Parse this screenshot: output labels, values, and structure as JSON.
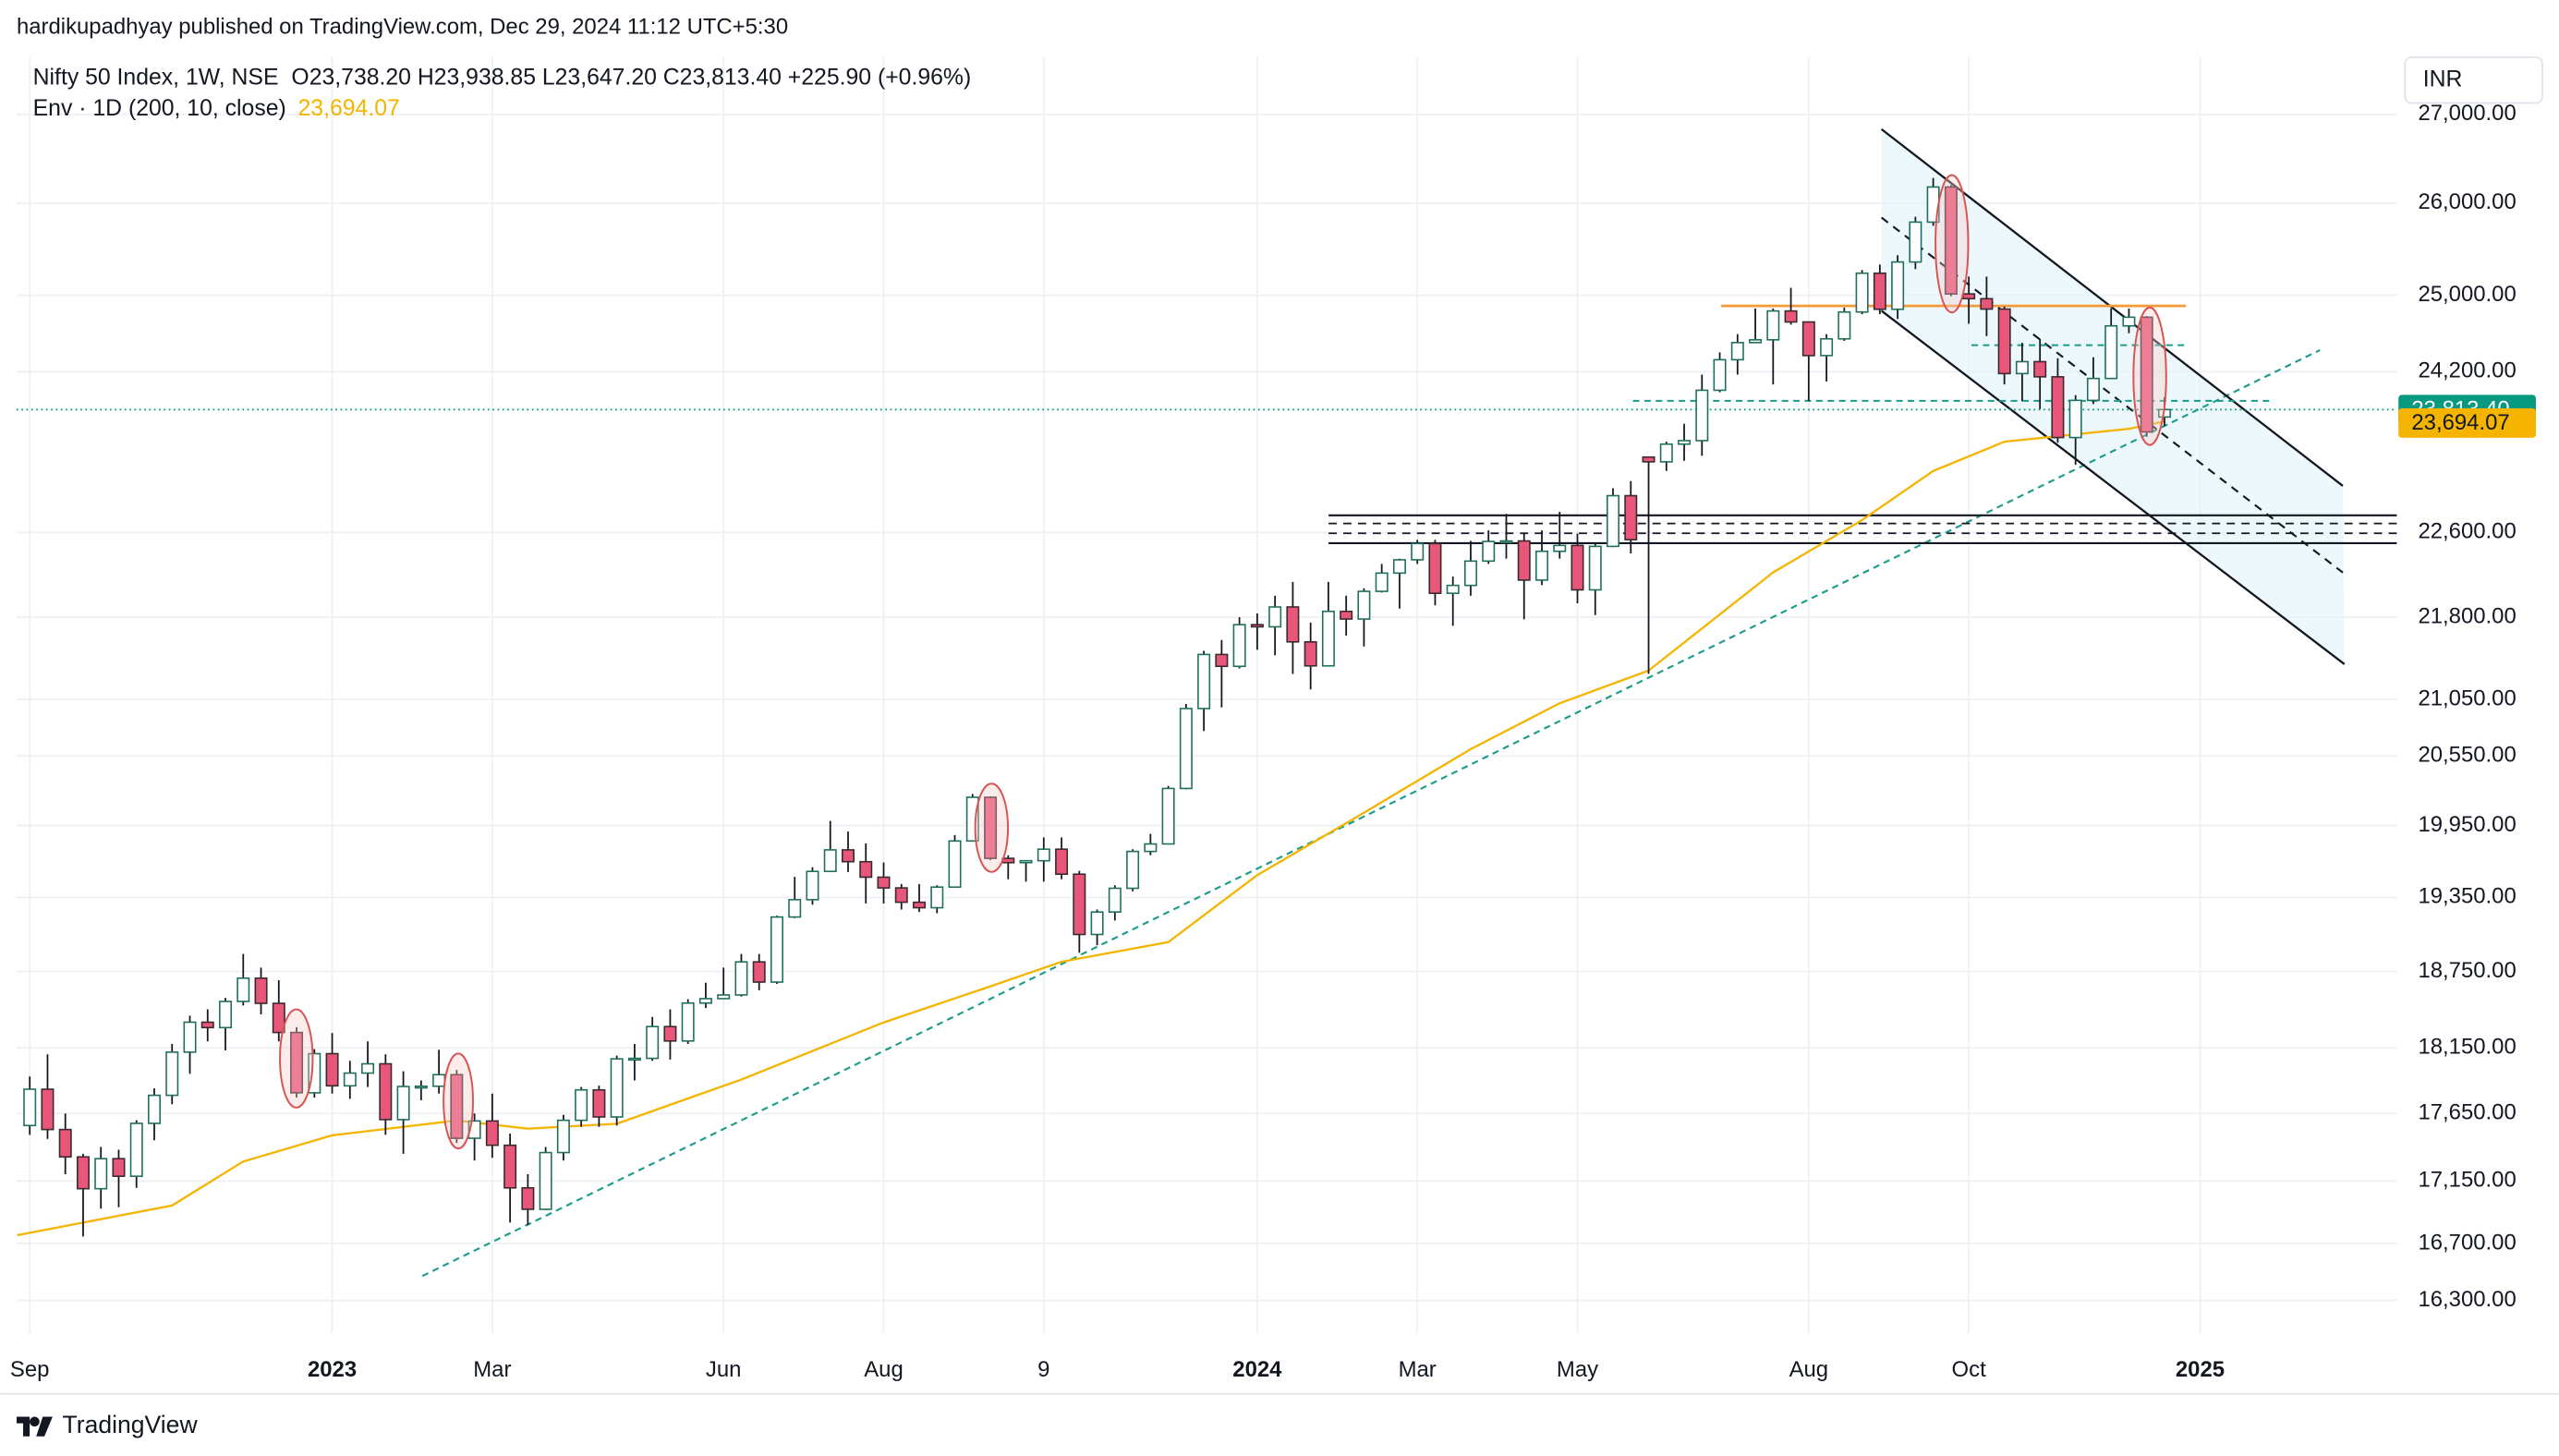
{
  "header": {
    "published": "hardikupadhyay published on TradingView.com, Dec 29, 2024 11:12 UTC+5:30",
    "brand": "TradingView"
  },
  "chart_data": {
    "type": "candlestick",
    "legend": {
      "symbol": "Nifty 50 Index, 1W, NSE",
      "ohlc": "O23,738.20 H23,938.85 L23,647.20 C23,813.40 +225.90 (+0.96%)",
      "indicator": "Env · 1D (200, 10, close)",
      "indicator_value": "23,694.07"
    },
    "currency": "INR",
    "last_price_label": "23,813.40",
    "up_color": "#ffffff",
    "down_color": "#e8577a",
    "log_scale": true,
    "grid": true,
    "candles": {
      "open": [
        17560,
        17833,
        17530,
        17327,
        17094,
        17314,
        17185,
        17576,
        17787,
        18117,
        18349,
        18307,
        18512,
        18696,
        18497,
        18269,
        17806,
        18105,
        17859,
        17956,
        18027,
        17604,
        17854,
        17856,
        17944,
        17465,
        17594,
        17413,
        17100,
        16945,
        17359,
        17599,
        17828,
        17624,
        18065,
        18069,
        18315,
        18203,
        18499,
        18534,
        18563,
        18826,
        18665,
        19189,
        19331,
        19565,
        19745,
        19646,
        19517,
        19428,
        19310,
        19265,
        19435,
        19820,
        20192,
        19674,
        19638,
        19654,
        19751,
        19542,
        19047,
        19230,
        19425,
        19732,
        19795,
        20268,
        20969,
        21457,
        21349,
        21731,
        21711,
        21895,
        21572,
        21353,
        21854,
        21783,
        22041,
        22213,
        22339,
        22494,
        22023,
        22097,
        22327,
        22514,
        22519,
        22147,
        22420,
        22476,
        22055,
        22467,
        22957,
        23337,
        23290,
        23466,
        23501,
        24010,
        24324,
        24502,
        24531,
        24834,
        24718,
        24367,
        24541,
        24823,
        25236,
        24852,
        25357,
        25791,
        26179,
        25015,
        24964,
        24854,
        24181,
        24304,
        24148,
        23532,
        23907,
        24131,
        24677,
        24768,
        23738.2
      ],
      "high": [
        17930,
        18100,
        17650,
        17350,
        17400,
        17380,
        17600,
        17840,
        18180,
        18400,
        18450,
        18540,
        18890,
        18780,
        18680,
        18310,
        18140,
        18265,
        18050,
        18200,
        18100,
        17970,
        17900,
        18135,
        17980,
        17650,
        17800,
        17500,
        17200,
        17400,
        17640,
        17850,
        17860,
        18090,
        18180,
        18390,
        18450,
        18530,
        18660,
        18780,
        18890,
        18890,
        19200,
        19520,
        19600,
        19990,
        19900,
        19800,
        19640,
        19460,
        19460,
        19450,
        19870,
        20220,
        20200,
        19700,
        19660,
        19850,
        19850,
        19570,
        19250,
        19450,
        19750,
        19880,
        20290,
        21010,
        21490,
        21590,
        21800,
        21835,
        22000,
        22130,
        21750,
        22130,
        22000,
        22070,
        22300,
        22350,
        22530,
        22530,
        22180,
        22520,
        22620,
        22780,
        22600,
        22620,
        22800,
        22590,
        22500,
        23030,
        23100,
        23339,
        23490,
        23670,
        24170,
        24400,
        24590,
        24860,
        24860,
        25080,
        24720,
        24590,
        24870,
        25270,
        25330,
        25430,
        25850,
        26280,
        26200,
        25200,
        25200,
        24880,
        24500,
        24540,
        24340,
        23960,
        24350,
        24860,
        24860,
        24780,
        23938.85
      ],
      "low": [
        17490,
        17460,
        17200,
        16750,
        16950,
        16960,
        17100,
        17450,
        17720,
        17950,
        18200,
        18130,
        18480,
        18410,
        18200,
        17770,
        17770,
        17800,
        17760,
        17850,
        17490,
        17350,
        17750,
        17800,
        17430,
        17300,
        17320,
        16850,
        16830,
        16940,
        17300,
        17550,
        17550,
        17560,
        17900,
        18050,
        18060,
        18180,
        18460,
        18530,
        18550,
        18600,
        18650,
        19180,
        19290,
        19560,
        19560,
        19300,
        19300,
        19250,
        19230,
        19220,
        19430,
        19820,
        19660,
        19500,
        19480,
        19480,
        19500,
        18900,
        18960,
        19160,
        19400,
        19700,
        19790,
        20260,
        20770,
        20980,
        21330,
        21500,
        21450,
        21280,
        21140,
        21350,
        21630,
        21530,
        22030,
        21880,
        22300,
        21910,
        21720,
        22000,
        22300,
        22350,
        21780,
        22100,
        22350,
        21930,
        21820,
        22460,
        22400,
        21281,
        23200,
        23300,
        23350,
        23990,
        24170,
        24500,
        24070,
        24690,
        23900,
        24100,
        24520,
        24800,
        24800,
        24750,
        25280,
        25750,
        24990,
        24700,
        24570,
        24070,
        23900,
        23820,
        23480,
        23260,
        23870,
        24140,
        24600,
        23540,
        23647.2
      ],
      "close": [
        17833,
        17530,
        17327,
        17094,
        17314,
        17185,
        17576,
        17787,
        18117,
        18349,
        18307,
        18512,
        18696,
        18497,
        18269,
        17806,
        18105,
        17859,
        17956,
        18027,
        17604,
        17854,
        17856,
        17944,
        17465,
        17594,
        17413,
        17100,
        16945,
        17359,
        17599,
        17828,
        17624,
        18065,
        18069,
        18315,
        18203,
        18499,
        18534,
        18563,
        18826,
        18665,
        19189,
        19331,
        19565,
        19745,
        19646,
        19517,
        19428,
        19310,
        19265,
        19435,
        19820,
        20192,
        19674,
        19638,
        19654,
        19751,
        19542,
        19047,
        19230,
        19425,
        19732,
        19795,
        20268,
        20969,
        21457,
        21349,
        21731,
        21711,
        21895,
        21572,
        21353,
        21854,
        21783,
        22041,
        22213,
        22339,
        22494,
        22023,
        22097,
        22327,
        22514,
        22519,
        22147,
        22420,
        22476,
        22055,
        22467,
        22957,
        22531,
        23290,
        23466,
        23501,
        24010,
        24324,
        24502,
        24531,
        24834,
        24718,
        24367,
        24541,
        24823,
        25236,
        24852,
        25357,
        25791,
        26179,
        25015,
        24964,
        24854,
        24181,
        24304,
        24148,
        23532,
        23907,
        24131,
        24677,
        24768,
        23588,
        23813.4
      ]
    },
    "series": [
      {
        "name": "Env · 1D (200, 10, close)",
        "color": "#f5b400",
        "x": [
          -0.7,
          8,
          12,
          17,
          24,
          28,
          33,
          40,
          48,
          54,
          58,
          64,
          69,
          75,
          81,
          86,
          91,
          98,
          103,
          107,
          111,
          118,
          120
        ],
        "values": [
          16760,
          16972,
          17293,
          17487,
          17598,
          17537,
          17573,
          17906,
          18347,
          18631,
          18827,
          18985,
          19535,
          20060,
          20610,
          21016,
          21310,
          22220,
          22720,
          23200,
          23490,
          23620,
          23694.07
        ]
      }
    ],
    "xlim": [
      -0.74,
      133.06
    ],
    "xticks": [
      {
        "value": 0,
        "label": "Sep"
      },
      {
        "value": 17,
        "label": "2023"
      },
      {
        "value": 26,
        "label": "Mar"
      },
      {
        "value": 39,
        "label": "Jun"
      },
      {
        "value": 48,
        "label": "Aug"
      },
      {
        "value": 57,
        "label": "9"
      },
      {
        "value": 69,
        "label": "2024"
      },
      {
        "value": 78,
        "label": "Mar"
      },
      {
        "value": 87,
        "label": "May"
      },
      {
        "value": 100,
        "label": "Aug"
      },
      {
        "value": 109,
        "label": "Oct"
      },
      {
        "value": 122,
        "label": "2025"
      }
    ],
    "ylim": [
      16074,
      27665
    ],
    "yticks": [
      {
        "value": 16300,
        "label": "16,300.00"
      },
      {
        "value": 16700,
        "label": "16,700.00"
      },
      {
        "value": 17150,
        "label": "17,150.00"
      },
      {
        "value": 17650,
        "label": "17,650.00"
      },
      {
        "value": 18150,
        "label": "18,150.00"
      },
      {
        "value": 18750,
        "label": "18,750.00"
      },
      {
        "value": 19350,
        "label": "19,350.00"
      },
      {
        "value": 19950,
        "label": "19,950.00"
      },
      {
        "value": 20550,
        "label": "20,550.00"
      },
      {
        "value": 21050,
        "label": "21,050.00"
      },
      {
        "value": 21800,
        "label": "21,800.00"
      },
      {
        "value": 22600,
        "label": "22,600.00"
      },
      {
        "value": 24200,
        "label": "24,200.00"
      },
      {
        "value": 25000,
        "label": "25,000.00"
      },
      {
        "value": 26000,
        "label": "26,000.00"
      },
      {
        "value": 27000,
        "label": "27,000.00"
      }
    ]
  }
}
